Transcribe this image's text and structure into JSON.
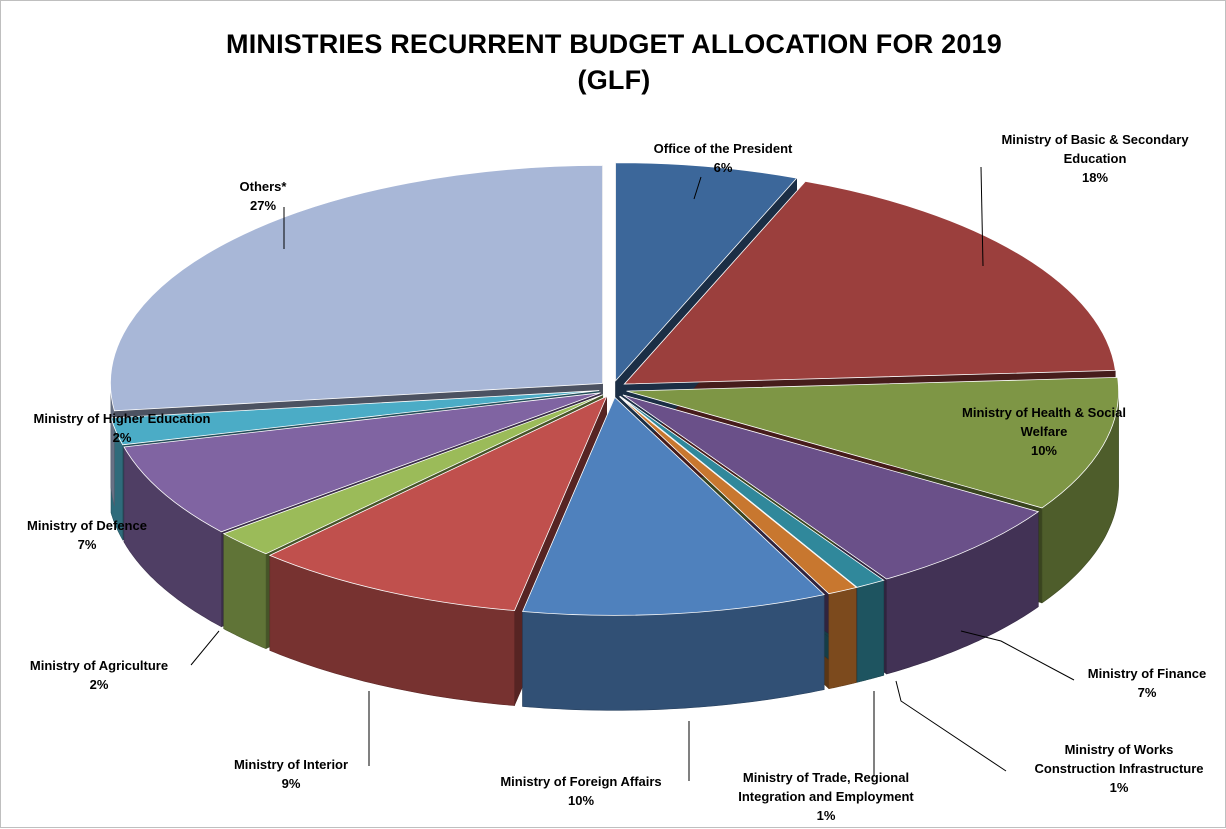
{
  "chart_data": {
    "type": "pie",
    "title_lines": [
      "MINISTRIES RECURRENT BUDGET ALLOCATION FOR 2019",
      "(GLF)"
    ],
    "slices": [
      {
        "label_lines": [
          "Office of the President"
        ],
        "value": 6,
        "value_label": "6%",
        "color": "#3C679A"
      },
      {
        "label_lines": [
          "Ministry of Basic & Secondary",
          "Education"
        ],
        "value": 18,
        "value_label": "18%",
        "color": "#9B3F3D"
      },
      {
        "label_lines": [
          "Ministry of Health & Social",
          "Welfare"
        ],
        "value": 10,
        "value_label": "10%",
        "color": "#7E9645"
      },
      {
        "label_lines": [
          "Ministry of Finance"
        ],
        "value": 7,
        "value_label": "7%",
        "color": "#6A5089"
      },
      {
        "label_lines": [
          "Ministry of Works",
          "Construction  Infrastructure"
        ],
        "value": 1,
        "value_label": "1%",
        "color": "#30889B"
      },
      {
        "label_lines": [
          "Ministry of Trade, Regional",
          "Integration and Employment"
        ],
        "value": 1,
        "value_label": "1%",
        "color": "#C8772F"
      },
      {
        "label_lines": [
          "Ministry of Foreign Affairs"
        ],
        "value": 10,
        "value_label": "10%",
        "color": "#4F81BD"
      },
      {
        "label_lines": [
          "Ministry of Interior"
        ],
        "value": 9,
        "value_label": "9%",
        "color": "#C0504D"
      },
      {
        "label_lines": [
          "Ministry of Agriculture"
        ],
        "value": 2,
        "value_label": "2%",
        "color": "#9BBB59"
      },
      {
        "label_lines": [
          "Ministry of Defence"
        ],
        "value": 7,
        "value_label": "7%",
        "color": "#8064A2"
      },
      {
        "label_lines": [
          "Ministry of Higher Education"
        ],
        "value": 2,
        "value_label": "2%",
        "color": "#4BACC6"
      },
      {
        "label_lines": [
          "Others*"
        ],
        "value": 27,
        "value_label": "27%",
        "color": "#A8B7D7"
      }
    ]
  }
}
